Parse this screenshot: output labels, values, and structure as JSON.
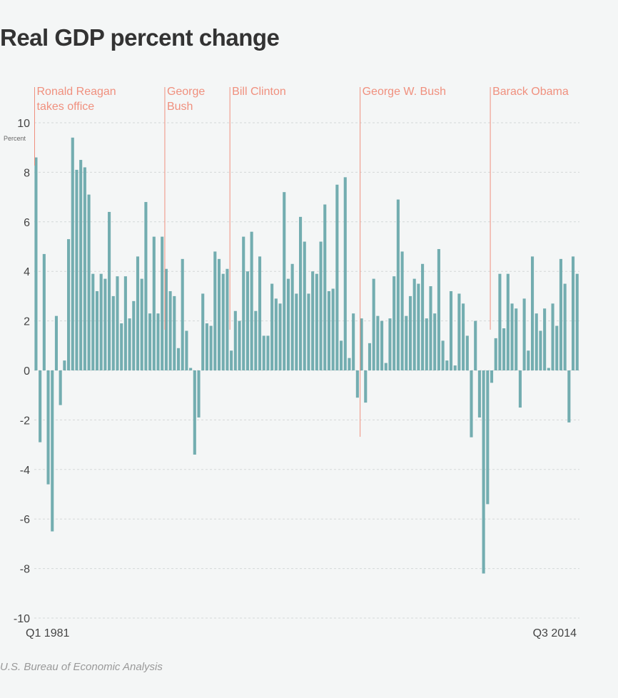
{
  "title": "Real GDP percent change",
  "source": "U.S. Bureau of Economic Analysis",
  "colors": {
    "bar": "#73adb0",
    "president": "#f0907e",
    "grid": "#d4d8d8",
    "text": "#444444"
  },
  "chart_data": {
    "type": "bar",
    "title": "Real GDP percent change",
    "ylabel": "Percent",
    "xlabel": "",
    "ylim": [
      -10,
      10
    ],
    "yticks": [
      10,
      8,
      6,
      4,
      2,
      0,
      -2,
      -4,
      -6,
      -8,
      -10
    ],
    "x_start_label": "Q1 1981",
    "x_end_label": "Q3 2014",
    "grid": true,
    "categories_note": "Quarterly, Q1 1981 through Q3 2014",
    "values": [
      8.6,
      -2.9,
      4.7,
      -4.6,
      -6.5,
      2.2,
      -1.4,
      0.4,
      5.3,
      9.4,
      8.1,
      8.5,
      8.2,
      7.1,
      3.9,
      3.2,
      3.9,
      3.7,
      6.4,
      3.0,
      3.8,
      1.9,
      3.8,
      2.1,
      2.8,
      4.6,
      3.7,
      6.8,
      2.3,
      5.4,
      2.3,
      5.4,
      4.1,
      3.2,
      3.0,
      0.9,
      4.5,
      1.6,
      0.1,
      -3.4,
      -1.9,
      3.1,
      1.9,
      1.8,
      4.8,
      4.5,
      3.9,
      4.1,
      0.8,
      2.4,
      2.0,
      5.4,
      4.0,
      5.6,
      2.4,
      4.6,
      1.4,
      1.4,
      3.5,
      2.9,
      2.7,
      7.2,
      3.7,
      4.3,
      3.1,
      6.2,
      5.2,
      3.1,
      4.0,
      3.9,
      5.2,
      6.7,
      3.2,
      3.3,
      7.5,
      1.2,
      7.8,
      0.5,
      2.3,
      -1.1,
      2.1,
      -1.3,
      1.1,
      3.7,
      2.2,
      2.0,
      0.3,
      2.1,
      3.8,
      6.9,
      4.8,
      2.2,
      3.0,
      3.7,
      3.5,
      4.3,
      2.1,
      3.4,
      2.3,
      4.9,
      1.2,
      0.4,
      3.2,
      0.2,
      3.1,
      2.7,
      1.4,
      -2.7,
      2.0,
      -1.9,
      -8.2,
      -5.4,
      -0.5,
      1.3,
      3.9,
      1.7,
      3.9,
      2.7,
      2.5,
      -1.5,
      2.9,
      0.8,
      4.6,
      2.3,
      1.6,
      2.5,
      0.1,
      2.7,
      1.8,
      4.5,
      3.5,
      -2.1,
      4.6,
      3.9
    ]
  },
  "presidents": [
    {
      "label_lines": [
        "Ronald Reagan",
        "takes office"
      ],
      "quarter_index": 0
    },
    {
      "label_lines": [
        "George",
        "Bush"
      ],
      "quarter_index": 32
    },
    {
      "label_lines": [
        "Bill Clinton"
      ],
      "quarter_index": 48
    },
    {
      "label_lines": [
        "George W. Bush"
      ],
      "quarter_index": 80
    },
    {
      "label_lines": [
        "Barack Obama"
      ],
      "quarter_index": 112
    }
  ]
}
